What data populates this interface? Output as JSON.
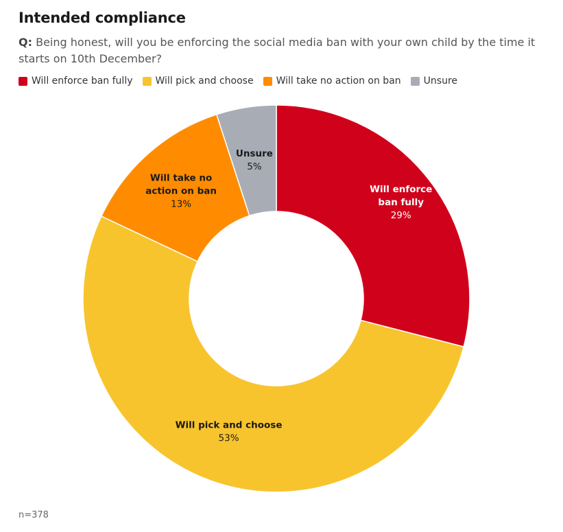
{
  "title": "Intended compliance",
  "question": {
    "prefix": "Q:",
    "text": "Being honest, will you be enforcing the social media ban with your own child by the time it starts on 10th December?"
  },
  "footnote": "n=378",
  "chart_data": {
    "type": "pie",
    "variant": "donut",
    "title": "Intended compliance",
    "slices": [
      {
        "name": "Will enforce ban fully",
        "label_lines": [
          "Will enforce",
          "ban fully"
        ],
        "value": 29,
        "value_label": "29%",
        "color": "#d0021b",
        "label_color": "#ffffff"
      },
      {
        "name": "Will pick and choose",
        "label_lines": [
          "Will pick and choose"
        ],
        "value": 53,
        "value_label": "53%",
        "color": "#f8c42e",
        "label_color": "#1a1a1a"
      },
      {
        "name": "Will take no action on ban",
        "label_lines": [
          "Will take no",
          "action on ban"
        ],
        "value": 13,
        "value_label": "13%",
        "color": "#ff8c00",
        "label_color": "#1a1a1a"
      },
      {
        "name": "Unsure",
        "label_lines": [
          "Unsure"
        ],
        "value": 5,
        "value_label": "5%",
        "color": "#a8acb5",
        "label_color": "#1a1a1a"
      }
    ],
    "legend": {
      "placement": "top-left",
      "entries": [
        "Will enforce ban fully",
        "Will pick and choose",
        "Will take no action on ban",
        "Unsure"
      ]
    }
  }
}
